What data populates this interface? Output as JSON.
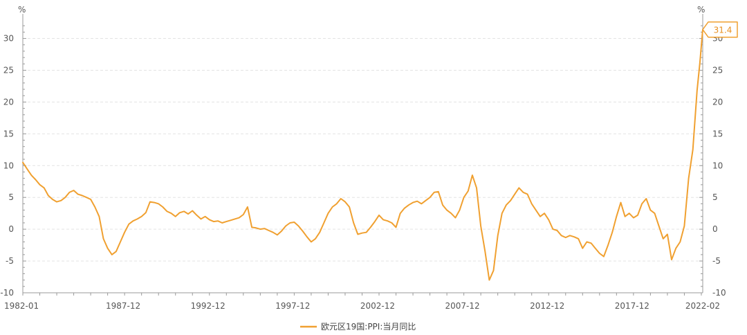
{
  "chart_data": {
    "type": "line",
    "y_unit_left": "%",
    "y_unit_right": "%",
    "ylim": [
      -10,
      33
    ],
    "y_ticks": [
      -10,
      -5,
      0,
      5,
      10,
      15,
      20,
      25,
      30
    ],
    "x_range": [
      "1982-01",
      "2022-02"
    ],
    "x_tick_labels": [
      "1982-01",
      "1987-12",
      "1992-12",
      "1997-12",
      "2002-12",
      "2007-12",
      "2012-12",
      "2017-12",
      "2022-02"
    ],
    "grid": "horizontal-dashed",
    "legend_position": "bottom-center",
    "colors": {
      "series": "#f0a030",
      "axis": "#999999",
      "grid": "#e3e3e3"
    },
    "callout": {
      "label": "31.4",
      "date": "2022-02",
      "value": 31.4
    },
    "series": [
      {
        "name": "欧元区19国:PPI:当月同比",
        "points": [
          [
            "1982-01",
            10.5
          ],
          [
            "1982-04",
            9.5
          ],
          [
            "1982-07",
            8.5
          ],
          [
            "1982-10",
            7.8
          ],
          [
            "1983-01",
            7.0
          ],
          [
            "1983-04",
            6.5
          ],
          [
            "1983-07",
            5.3
          ],
          [
            "1983-10",
            4.7
          ],
          [
            "1984-01",
            4.3
          ],
          [
            "1984-04",
            4.5
          ],
          [
            "1984-07",
            5.0
          ],
          [
            "1984-10",
            5.8
          ],
          [
            "1985-01",
            6.1
          ],
          [
            "1985-04",
            5.5
          ],
          [
            "1985-07",
            5.3
          ],
          [
            "1985-10",
            5.0
          ],
          [
            "1986-01",
            4.7
          ],
          [
            "1986-04",
            3.5
          ],
          [
            "1986-07",
            2.0
          ],
          [
            "1986-10",
            -1.5
          ],
          [
            "1987-01",
            -3.0
          ],
          [
            "1987-04",
            -4.0
          ],
          [
            "1987-07",
            -3.5
          ],
          [
            "1987-10",
            -2.0
          ],
          [
            "1988-01",
            -0.5
          ],
          [
            "1988-04",
            0.8
          ],
          [
            "1988-07",
            1.3
          ],
          [
            "1988-10",
            1.6
          ],
          [
            "1989-01",
            2.0
          ],
          [
            "1989-04",
            2.6
          ],
          [
            "1989-07",
            4.3
          ],
          [
            "1989-10",
            4.2
          ],
          [
            "1990-01",
            4.0
          ],
          [
            "1990-04",
            3.5
          ],
          [
            "1990-07",
            2.8
          ],
          [
            "1990-10",
            2.5
          ],
          [
            "1991-01",
            2.0
          ],
          [
            "1991-04",
            2.6
          ],
          [
            "1991-07",
            2.8
          ],
          [
            "1991-10",
            2.4
          ],
          [
            "1992-01",
            2.9
          ],
          [
            "1992-04",
            2.2
          ],
          [
            "1992-07",
            1.6
          ],
          [
            "1992-10",
            2.0
          ],
          [
            "1993-01",
            1.5
          ],
          [
            "1993-04",
            1.2
          ],
          [
            "1993-07",
            1.3
          ],
          [
            "1993-10",
            1.0
          ],
          [
            "1994-01",
            1.2
          ],
          [
            "1994-04",
            1.4
          ],
          [
            "1994-07",
            1.6
          ],
          [
            "1994-10",
            1.8
          ],
          [
            "1995-01",
            2.3
          ],
          [
            "1995-04",
            3.5
          ],
          [
            "1995-07",
            0.3
          ],
          [
            "1995-10",
            0.2
          ],
          [
            "1996-01",
            0.0
          ],
          [
            "1996-04",
            0.1
          ],
          [
            "1996-07",
            -0.2
          ],
          [
            "1996-10",
            -0.5
          ],
          [
            "1997-01",
            -0.9
          ],
          [
            "1997-04",
            -0.3
          ],
          [
            "1997-07",
            0.5
          ],
          [
            "1997-10",
            1.0
          ],
          [
            "1998-01",
            1.1
          ],
          [
            "1998-04",
            0.5
          ],
          [
            "1998-07",
            -0.3
          ],
          [
            "1998-10",
            -1.2
          ],
          [
            "1999-01",
            -2.0
          ],
          [
            "1999-04",
            -1.5
          ],
          [
            "1999-07",
            -0.5
          ],
          [
            "1999-10",
            1.0
          ],
          [
            "2000-01",
            2.5
          ],
          [
            "2000-04",
            3.5
          ],
          [
            "2000-07",
            4.0
          ],
          [
            "2000-10",
            4.8
          ],
          [
            "2001-01",
            4.3
          ],
          [
            "2001-04",
            3.5
          ],
          [
            "2001-07",
            1.0
          ],
          [
            "2001-10",
            -0.8
          ],
          [
            "2002-01",
            -0.6
          ],
          [
            "2002-04",
            -0.5
          ],
          [
            "2002-07",
            0.3
          ],
          [
            "2002-10",
            1.2
          ],
          [
            "2003-01",
            2.2
          ],
          [
            "2003-04",
            1.5
          ],
          [
            "2003-07",
            1.3
          ],
          [
            "2003-10",
            1.0
          ],
          [
            "2004-01",
            0.3
          ],
          [
            "2004-04",
            2.5
          ],
          [
            "2004-07",
            3.3
          ],
          [
            "2004-10",
            3.8
          ],
          [
            "2005-01",
            4.2
          ],
          [
            "2005-04",
            4.4
          ],
          [
            "2005-07",
            4.0
          ],
          [
            "2005-10",
            4.5
          ],
          [
            "2006-01",
            5.0
          ],
          [
            "2006-04",
            5.8
          ],
          [
            "2006-07",
            5.9
          ],
          [
            "2006-10",
            3.8
          ],
          [
            "2007-01",
            3.0
          ],
          [
            "2007-04",
            2.5
          ],
          [
            "2007-07",
            1.8
          ],
          [
            "2007-10",
            3.0
          ],
          [
            "2008-01",
            5.0
          ],
          [
            "2008-04",
            6.0
          ],
          [
            "2008-07",
            8.5
          ],
          [
            "2008-10",
            6.5
          ],
          [
            "2009-01",
            0.5
          ],
          [
            "2009-04",
            -3.5
          ],
          [
            "2009-07",
            -8.0
          ],
          [
            "2009-10",
            -6.5
          ],
          [
            "2010-01",
            -1.0
          ],
          [
            "2010-04",
            2.5
          ],
          [
            "2010-07",
            3.8
          ],
          [
            "2010-10",
            4.5
          ],
          [
            "2011-01",
            5.5
          ],
          [
            "2011-04",
            6.5
          ],
          [
            "2011-07",
            5.8
          ],
          [
            "2011-10",
            5.5
          ],
          [
            "2012-01",
            4.0
          ],
          [
            "2012-04",
            3.0
          ],
          [
            "2012-07",
            2.0
          ],
          [
            "2012-10",
            2.5
          ],
          [
            "2013-01",
            1.5
          ],
          [
            "2013-04",
            0.0
          ],
          [
            "2013-07",
            -0.2
          ],
          [
            "2013-10",
            -1.0
          ],
          [
            "2014-01",
            -1.3
          ],
          [
            "2014-04",
            -1.0
          ],
          [
            "2014-07",
            -1.2
          ],
          [
            "2014-10",
            -1.5
          ],
          [
            "2015-01",
            -3.0
          ],
          [
            "2015-04",
            -2.0
          ],
          [
            "2015-07",
            -2.2
          ],
          [
            "2015-10",
            -3.0
          ],
          [
            "2016-01",
            -3.8
          ],
          [
            "2016-04",
            -4.3
          ],
          [
            "2016-07",
            -2.5
          ],
          [
            "2016-10",
            -0.5
          ],
          [
            "2017-01",
            2.0
          ],
          [
            "2017-04",
            4.2
          ],
          [
            "2017-07",
            2.0
          ],
          [
            "2017-10",
            2.5
          ],
          [
            "2018-01",
            1.8
          ],
          [
            "2018-04",
            2.2
          ],
          [
            "2018-07",
            4.0
          ],
          [
            "2018-10",
            4.8
          ],
          [
            "2019-01",
            3.0
          ],
          [
            "2019-04",
            2.5
          ],
          [
            "2019-07",
            0.5
          ],
          [
            "2019-10",
            -1.5
          ],
          [
            "2020-01",
            -0.8
          ],
          [
            "2020-04",
            -4.8
          ],
          [
            "2020-07",
            -3.0
          ],
          [
            "2020-10",
            -2.0
          ],
          [
            "2021-01",
            0.5
          ],
          [
            "2021-04",
            8.0
          ],
          [
            "2021-07",
            12.5
          ],
          [
            "2021-10",
            21.8
          ],
          [
            "2021-12",
            26.2
          ],
          [
            "2022-02",
            31.4
          ]
        ]
      }
    ]
  }
}
